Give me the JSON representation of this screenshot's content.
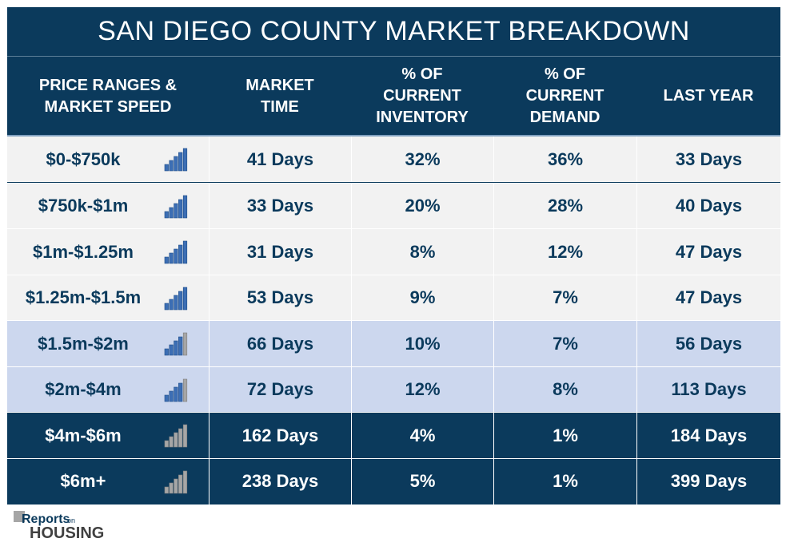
{
  "title": "SAN DIEGO COUNTY MARKET BREAKDOWN",
  "headers": {
    "price": [
      "PRICE RANGES &",
      "MARKET SPEED"
    ],
    "market_time": [
      "MARKET",
      "TIME"
    ],
    "inventory": [
      "% OF",
      "CURRENT",
      "INVENTORY"
    ],
    "demand": [
      "% OF",
      "CURRENT",
      "DEMAND"
    ],
    "last_year": [
      "LAST YEAR"
    ]
  },
  "rows": [
    {
      "range": "$0-$750k",
      "market_time": "41 Days",
      "inventory": "32%",
      "demand": "36%",
      "last_year": "33 Days",
      "speed": "fast"
    },
    {
      "range": "$750k-$1m",
      "market_time": "33 Days",
      "inventory": "20%",
      "demand": "28%",
      "last_year": "40 Days",
      "speed": "fast"
    },
    {
      "range": "$1m-$1.25m",
      "market_time": "31 Days",
      "inventory": "8%",
      "demand": "12%",
      "last_year": "47 Days",
      "speed": "fast"
    },
    {
      "range": "$1.25m-$1.5m",
      "market_time": "53 Days",
      "inventory": "9%",
      "demand": "7%",
      "last_year": "47 Days",
      "speed": "fast"
    },
    {
      "range": "$1.5m-$2m",
      "market_time": "66 Days",
      "inventory": "10%",
      "demand": "7%",
      "last_year": "56 Days",
      "speed": "medium"
    },
    {
      "range": "$2m-$4m",
      "market_time": "72 Days",
      "inventory": "12%",
      "demand": "8%",
      "last_year": "113 Days",
      "speed": "medium"
    },
    {
      "range": "$4m-$6m",
      "market_time": "162 Days",
      "inventory": "4%",
      "demand": "1%",
      "last_year": "184 Days",
      "speed": "slow"
    },
    {
      "range": "$6m+",
      "market_time": "238 Days",
      "inventory": "5%",
      "demand": "1%",
      "last_year": "399 Days",
      "speed": "slow"
    }
  ],
  "speed_styles": {
    "fast": {
      "bg": "#f2f2f2",
      "text": "#0b3a5c",
      "bars_blue": 5
    },
    "medium": {
      "bg": "#ccd7ee",
      "text": "#0b3a5c",
      "bars_blue": 4
    },
    "slow": {
      "bg": "#0b3a5c",
      "text": "#ffffff",
      "bars_blue": 0
    }
  },
  "colors": {
    "navy": "#0b3a5c",
    "bar_blue": "#3c6eb4",
    "bar_gray": "#a6a6a6"
  },
  "logo": {
    "line1": "Reports",
    "small": "on",
    "line2": "HOUSING"
  }
}
